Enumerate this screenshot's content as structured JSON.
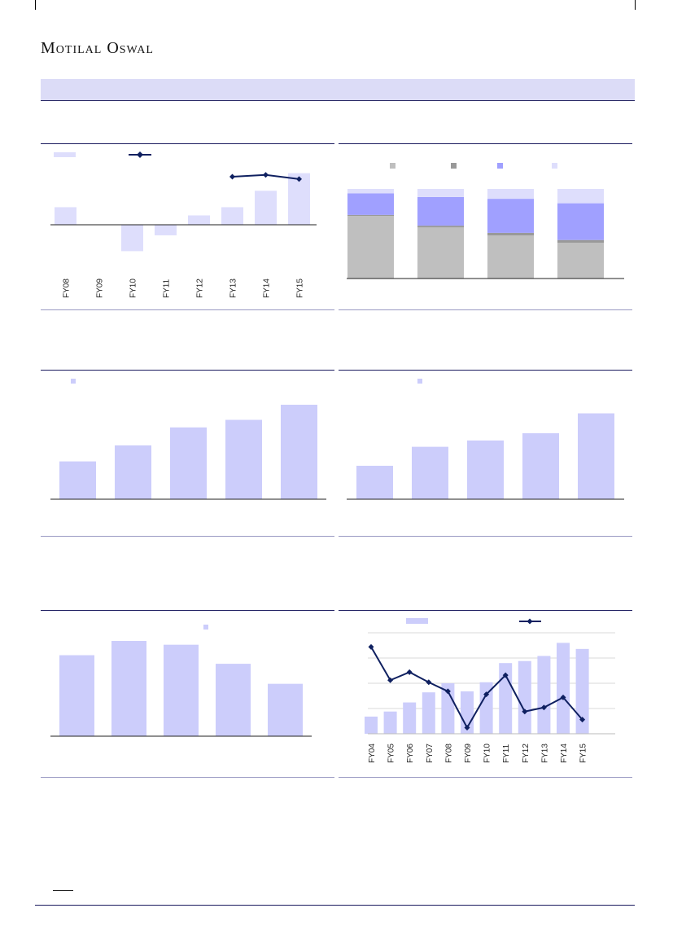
{
  "header": {
    "logo_text": "Motilal Oswal"
  },
  "colors": {
    "light_bar": "#dedefc",
    "mid_bar": "#cccdfb",
    "bar_violet": "#a0a0ff",
    "dark_gray": "#999999",
    "light_gray": "#bfbfbf",
    "line_navy": "#0f2060",
    "rule_navy": "#1a1a5e"
  },
  "chart_data": [
    {
      "id": "chart1",
      "type": "bar+line",
      "categories": [
        "FY08",
        "FY09",
        "FY10",
        "FY11",
        "FY12",
        "FY13",
        "FY14",
        "FY15"
      ],
      "bar_values": [
        30,
        0,
        -45,
        -18,
        16,
        30,
        58,
        88
      ],
      "line_values": [
        null,
        null,
        null,
        null,
        null,
        82,
        85,
        78
      ],
      "ylim": [
        -80,
        100
      ]
    },
    {
      "id": "chart2",
      "type": "stacked_bar",
      "groups": 4,
      "series": [
        {
          "values": [
            70,
            57,
            48,
            40
          ]
        },
        {
          "values": [
            1,
            2,
            3,
            3
          ]
        },
        {
          "values": [
            24,
            32,
            38,
            41
          ]
        },
        {
          "values": [
            5,
            9,
            11,
            16
          ]
        }
      ],
      "ylim": [
        0,
        100
      ]
    },
    {
      "id": "chart3",
      "type": "bar",
      "values": [
        40,
        57,
        76,
        84,
        100
      ],
      "ylim": [
        0,
        110
      ]
    },
    {
      "id": "chart4",
      "type": "bar",
      "values": [
        37,
        58,
        65,
        73,
        95
      ],
      "ylim": [
        0,
        110
      ]
    },
    {
      "id": "chart5",
      "type": "bar",
      "values": [
        85,
        100,
        96,
        76,
        55
      ],
      "ylim": [
        0,
        110
      ]
    },
    {
      "id": "chart6",
      "type": "bar+line",
      "categories": [
        "FY04",
        "FY05",
        "FY06",
        "FY07",
        "FY08",
        "FY09",
        "FY10",
        "FY11",
        "FY12",
        "FY13",
        "FY14",
        "FY15"
      ],
      "bar_values": [
        17,
        22,
        31,
        41,
        50,
        42,
        51,
        70,
        72,
        77,
        90,
        84
      ],
      "line_values": [
        86,
        53,
        61,
        51,
        42,
        6,
        39,
        58,
        22,
        26,
        36,
        14
      ],
      "ylim": [
        0,
        100
      ]
    }
  ]
}
